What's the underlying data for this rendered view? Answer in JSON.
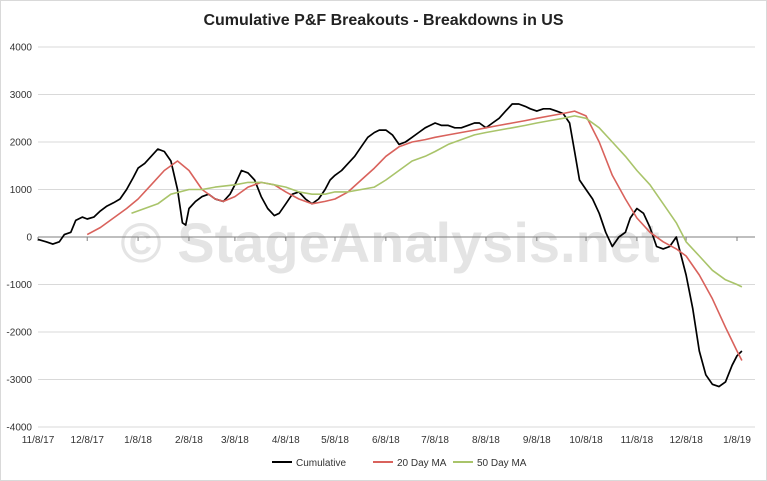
{
  "chart_data": {
    "type": "line",
    "title": "Cumulative P&F Breakouts - Breakdowns in US",
    "watermark": "© StageAnalysis.net",
    "xlabel": "",
    "ylabel": "",
    "ylim": [
      -4000,
      4000
    ],
    "yticks": [
      4000,
      3000,
      2000,
      1000,
      0,
      -1000,
      -2000,
      -3000,
      -4000
    ],
    "xticks": [
      "11/8/17",
      "12/8/17",
      "1/8/18",
      "2/8/18",
      "3/8/18",
      "4/8/18",
      "5/8/18",
      "6/8/18",
      "7/8/18",
      "8/8/18",
      "9/8/18",
      "10/8/18",
      "11/8/18",
      "12/8/18",
      "1/8/19"
    ],
    "grid": true,
    "legend": "bottom",
    "series": [
      {
        "name": "Cumulative",
        "color": "#000000",
        "x": [
          "11/8/17",
          "11/13/17",
          "11/17/17",
          "11/21/17",
          "11/24/17",
          "11/28/17",
          "12/1/17",
          "12/5/17",
          "12/8/17",
          "12/12/17",
          "12/16/17",
          "12/20/17",
          "12/24/17",
          "12/28/17",
          "1/1/18",
          "1/5/18",
          "1/8/18",
          "1/12/18",
          "1/16/18",
          "1/20/18",
          "1/24/18",
          "1/28/18",
          "2/1/18",
          "2/4/18",
          "2/6/18",
          "2/8/18",
          "2/12/18",
          "2/16/18",
          "2/20/18",
          "2/24/18",
          "3/1/18",
          "3/5/18",
          "3/8/18",
          "3/12/18",
          "3/16/18",
          "3/20/18",
          "3/24/18",
          "3/28/18",
          "4/1/18",
          "4/4/18",
          "4/8/18",
          "4/12/18",
          "4/16/18",
          "4/20/18",
          "4/24/18",
          "4/28/18",
          "5/2/18",
          "5/5/18",
          "5/8/18",
          "5/12/18",
          "5/16/18",
          "5/20/18",
          "5/24/18",
          "5/28/18",
          "6/1/18",
          "6/4/18",
          "6/8/18",
          "6/12/18",
          "6/16/18",
          "6/20/18",
          "6/24/18",
          "6/28/18",
          "7/2/18",
          "7/5/18",
          "7/8/18",
          "7/12/18",
          "7/16/18",
          "7/20/18",
          "7/24/18",
          "7/28/18",
          "8/1/18",
          "8/4/18",
          "8/8/18",
          "8/12/18",
          "8/16/18",
          "8/20/18",
          "8/24/18",
          "8/28/18",
          "9/1/18",
          "9/4/18",
          "9/8/18",
          "9/12/18",
          "9/16/18",
          "9/20/18",
          "9/24/18",
          "9/28/18",
          "10/1/18",
          "10/4/18",
          "10/8/18",
          "10/12/18",
          "10/16/18",
          "10/20/18",
          "10/24/18",
          "10/28/18",
          "11/1/18",
          "11/4/18",
          "11/8/18",
          "11/12/18",
          "11/16/18",
          "11/20/18",
          "11/24/18",
          "11/28/18",
          "12/2/18",
          "12/5/18",
          "12/8/18",
          "12/12/18",
          "12/16/18",
          "12/20/18",
          "12/24/18",
          "12/28/18",
          "1/1/19",
          "1/5/19",
          "1/8/19",
          "1/11/19"
        ],
        "values": [
          -50,
          -100,
          -150,
          -100,
          50,
          100,
          350,
          420,
          380,
          420,
          550,
          650,
          720,
          800,
          1000,
          1250,
          1450,
          1550,
          1700,
          1850,
          1800,
          1600,
          1000,
          300,
          250,
          600,
          750,
          850,
          900,
          800,
          750,
          900,
          1100,
          1400,
          1350,
          1200,
          850,
          600,
          450,
          500,
          700,
          900,
          950,
          800,
          700,
          800,
          1000,
          1200,
          1300,
          1400,
          1550,
          1700,
          1900,
          2100,
          2200,
          2250,
          2250,
          2150,
          1950,
          2000,
          2100,
          2200,
          2300,
          2350,
          2400,
          2350,
          2350,
          2300,
          2300,
          2350,
          2400,
          2400,
          2300,
          2400,
          2500,
          2650,
          2800,
          2800,
          2750,
          2700,
          2650,
          2700,
          2700,
          2650,
          2600,
          2400,
          1800,
          1200,
          1000,
          800,
          500,
          100,
          -200,
          0,
          100,
          400,
          600,
          500,
          200,
          -200,
          -250,
          -200,
          0,
          -400,
          -800,
          -1500,
          -2400,
          -2900,
          -3100,
          -3150,
          -3050,
          -2700,
          -2500,
          -2400
        ]
      },
      {
        "name": "20 Day MA",
        "color": "#d9625c",
        "x": [
          "12/8/17",
          "12/16/17",
          "12/24/17",
          "1/1/18",
          "1/8/18",
          "1/16/18",
          "1/24/18",
          "2/1/18",
          "2/8/18",
          "2/16/18",
          "2/24/18",
          "3/1/18",
          "3/8/18",
          "3/16/18",
          "3/24/18",
          "4/1/18",
          "4/8/18",
          "4/16/18",
          "4/24/18",
          "5/2/18",
          "5/8/18",
          "5/16/18",
          "5/24/18",
          "6/1/18",
          "6/8/18",
          "6/16/18",
          "6/24/18",
          "7/2/18",
          "7/8/18",
          "7/16/18",
          "7/24/18",
          "8/1/18",
          "8/8/18",
          "8/16/18",
          "8/24/18",
          "9/1/18",
          "9/8/18",
          "9/16/18",
          "9/24/18",
          "10/1/18",
          "10/8/18",
          "10/16/18",
          "10/24/18",
          "11/1/18",
          "11/8/18",
          "11/16/18",
          "11/24/18",
          "12/2/18",
          "12/8/18",
          "12/16/18",
          "12/24/18",
          "1/1/19",
          "1/8/19",
          "1/11/19"
        ],
        "values": [
          50,
          200,
          400,
          600,
          800,
          1100,
          1400,
          1600,
          1400,
          1000,
          800,
          750,
          850,
          1050,
          1150,
          1100,
          950,
          800,
          700,
          750,
          800,
          950,
          1200,
          1450,
          1700,
          1900,
          2000,
          2050,
          2100,
          2150,
          2200,
          2250,
          2300,
          2350,
          2400,
          2450,
          2500,
          2550,
          2600,
          2650,
          2550,
          2000,
          1300,
          800,
          400,
          100,
          -100,
          -250,
          -400,
          -800,
          -1300,
          -1900,
          -2400,
          -2600
        ]
      },
      {
        "name": "50 Day MA",
        "color": "#a9c46a",
        "x": [
          "1/4/18",
          "1/12/18",
          "1/20/18",
          "1/28/18",
          "2/8/18",
          "2/16/18",
          "2/24/18",
          "3/8/18",
          "3/16/18",
          "3/24/18",
          "4/1/18",
          "4/8/18",
          "4/16/18",
          "4/24/18",
          "5/2/18",
          "5/8/18",
          "5/16/18",
          "5/24/18",
          "6/1/18",
          "6/8/18",
          "6/16/18",
          "6/24/18",
          "7/2/18",
          "7/8/18",
          "7/16/18",
          "7/24/18",
          "8/1/18",
          "8/8/18",
          "8/16/18",
          "8/24/18",
          "9/1/18",
          "9/8/18",
          "9/16/18",
          "9/24/18",
          "10/1/18",
          "10/8/18",
          "10/16/18",
          "10/24/18",
          "11/1/18",
          "11/8/18",
          "11/16/18",
          "11/24/18",
          "12/2/18",
          "12/8/18",
          "12/16/18",
          "12/24/18",
          "1/1/19",
          "1/8/19",
          "1/11/19"
        ],
        "values": [
          500,
          600,
          700,
          900,
          1000,
          1000,
          1050,
          1100,
          1150,
          1150,
          1100,
          1050,
          950,
          900,
          900,
          950,
          950,
          1000,
          1050,
          1200,
          1400,
          1600,
          1700,
          1800,
          1950,
          2050,
          2150,
          2200,
          2250,
          2300,
          2350,
          2400,
          2450,
          2500,
          2550,
          2500,
          2300,
          2000,
          1700,
          1400,
          1100,
          700,
          300,
          -100,
          -400,
          -700,
          -900,
          -1000,
          -1050
        ]
      }
    ]
  }
}
